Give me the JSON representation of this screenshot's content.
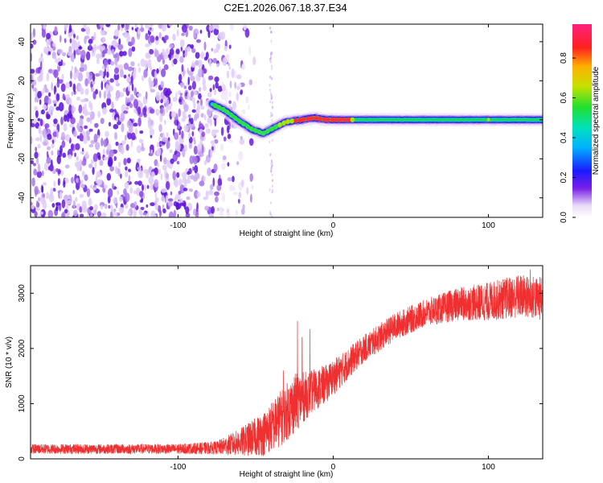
{
  "title": "C2E1.2026.067.18.37.E34",
  "chart_data": [
    {
      "type": "heatmap",
      "title": "C2E1.2026.067.18.37.E34",
      "xlabel": "Height of straight line (km)",
      "ylabel": "Frequency (Hz)",
      "xlim": [
        -195,
        135
      ],
      "ylim": [
        -50,
        49
      ],
      "xticks": [
        -100,
        0,
        100
      ],
      "yticks": [
        -40,
        -20,
        0,
        20,
        40
      ],
      "xtick_labels": [
        "-100",
        "0",
        "100"
      ],
      "ytick_labels": [
        "-40",
        "-20",
        "0",
        "20",
        "40"
      ],
      "colorbar": {
        "label": "Normalized spectral amplitude",
        "range": [
          0,
          0.97
        ],
        "ticks": [
          0.0,
          0.2,
          0.4,
          0.6,
          0.8
        ],
        "tick_labels": [
          "0.0",
          "0.2",
          "0.4",
          "0.6",
          "0.8"
        ]
      },
      "noise_region_x": [
        -195,
        -63
      ],
      "sparse_column_x": -40,
      "signal_trace": [
        {
          "x": -78,
          "y": 8
        },
        {
          "x": -70,
          "y": 5
        },
        {
          "x": -60,
          "y": -1
        },
        {
          "x": -52,
          "y": -5
        },
        {
          "x": -45,
          "y": -7
        },
        {
          "x": -38,
          "y": -4
        },
        {
          "x": -30,
          "y": -1
        },
        {
          "x": -20,
          "y": 0
        },
        {
          "x": -12,
          "y": 1
        },
        {
          "x": -5,
          "y": 0
        },
        {
          "x": 10,
          "y": 0
        },
        {
          "x": 40,
          "y": 0
        },
        {
          "x": 100,
          "y": 0
        },
        {
          "x": 135,
          "y": 0
        }
      ]
    },
    {
      "type": "line",
      "xlabel": "Height of straight line (km)",
      "ylabel": "SNR (10 * v/v)",
      "xlim": [
        -195,
        135
      ],
      "ylim": [
        0,
        3500
      ],
      "xticks": [
        -100,
        0,
        100
      ],
      "yticks": [
        0,
        1000,
        2000,
        3000
      ],
      "xtick_labels": [
        "-100",
        "0",
        "100"
      ],
      "ytick_labels": [
        "0",
        "1000",
        "2000",
        "3000"
      ],
      "color": "#f03030",
      "envelope": [
        {
          "x": -195,
          "mean": 180,
          "spread": 90
        },
        {
          "x": -100,
          "mean": 180,
          "spread": 90
        },
        {
          "x": -75,
          "mean": 200,
          "spread": 120
        },
        {
          "x": -60,
          "mean": 300,
          "spread": 250
        },
        {
          "x": -45,
          "mean": 450,
          "spread": 400
        },
        {
          "x": -35,
          "mean": 700,
          "spread": 500
        },
        {
          "x": -25,
          "mean": 1000,
          "spread": 550
        },
        {
          "x": -15,
          "mean": 1200,
          "spread": 400
        },
        {
          "x": -5,
          "mean": 1350,
          "spread": 350
        },
        {
          "x": 5,
          "mean": 1600,
          "spread": 300
        },
        {
          "x": 20,
          "mean": 2000,
          "spread": 250
        },
        {
          "x": 40,
          "mean": 2400,
          "spread": 250
        },
        {
          "x": 60,
          "mean": 2650,
          "spread": 250
        },
        {
          "x": 80,
          "mean": 2800,
          "spread": 300
        },
        {
          "x": 100,
          "mean": 2850,
          "spread": 350
        },
        {
          "x": 120,
          "mean": 2950,
          "spread": 400
        },
        {
          "x": 135,
          "mean": 2900,
          "spread": 400
        }
      ],
      "spikes": [
        {
          "x": -23,
          "y": 2500
        },
        {
          "x": -20,
          "y": 2200
        },
        {
          "x": -15,
          "y": 2350
        },
        {
          "x": -32,
          "y": 1600
        },
        {
          "x": 127,
          "y": 3430
        }
      ]
    }
  ]
}
